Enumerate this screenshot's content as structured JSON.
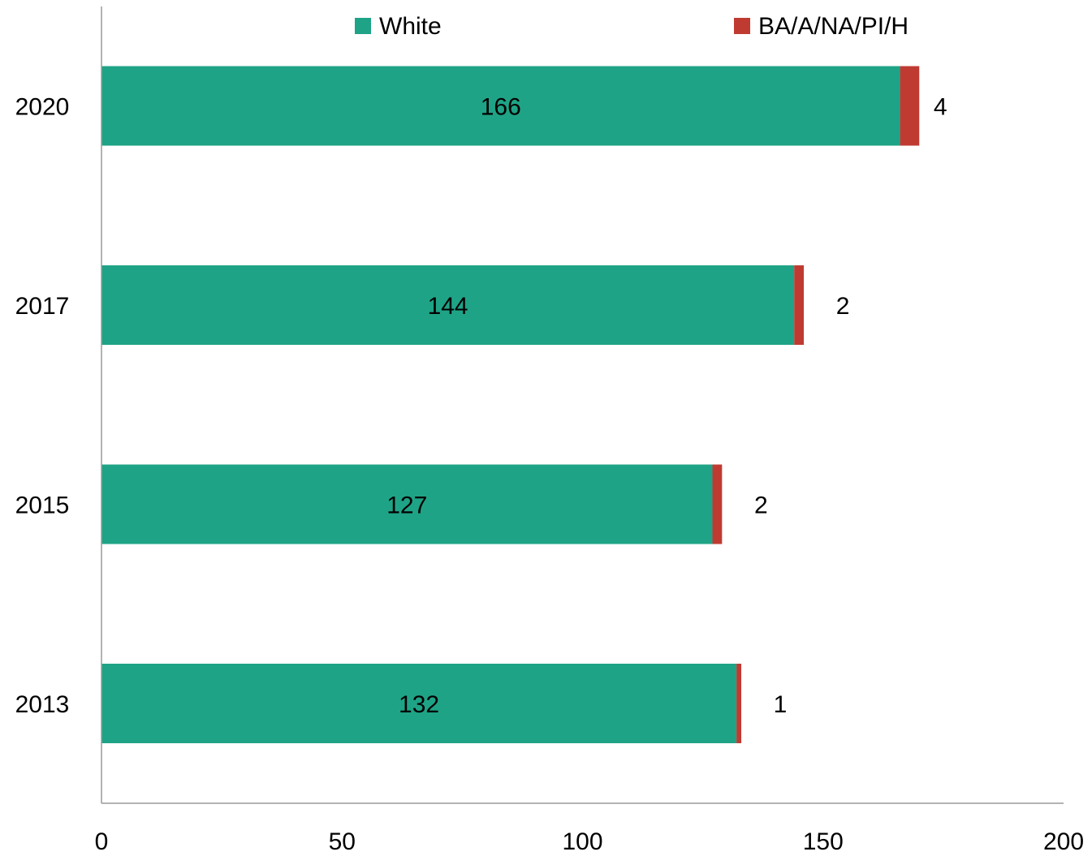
{
  "chart_data": {
    "type": "bar",
    "orientation": "horizontal",
    "stacked": true,
    "categories": [
      "2020",
      "2017",
      "2015",
      "2013"
    ],
    "series": [
      {
        "name": "White",
        "values": [
          166,
          144,
          127,
          132
        ],
        "color": "#1fa386"
      },
      {
        "name": "BA/A/NA/PI/H",
        "values": [
          4,
          2,
          2,
          1
        ],
        "color": "#bf3b32"
      }
    ],
    "data_labels": {
      "White": [
        "166",
        "144",
        "127",
        "132"
      ],
      "BA/A/NA/PI/H": [
        "4",
        "2",
        "2",
        "1"
      ]
    },
    "xaxis": {
      "ticks": [
        0,
        50,
        100,
        150,
        200
      ],
      "tick_labels": [
        "0",
        "50",
        "100",
        "150",
        "200"
      ],
      "range": [
        0,
        200
      ]
    },
    "title": "",
    "xlabel": "",
    "ylabel": "",
    "grid": false,
    "legend": {
      "position": "top",
      "entries": [
        "White",
        "BA/A/NA/PI/H"
      ]
    }
  }
}
